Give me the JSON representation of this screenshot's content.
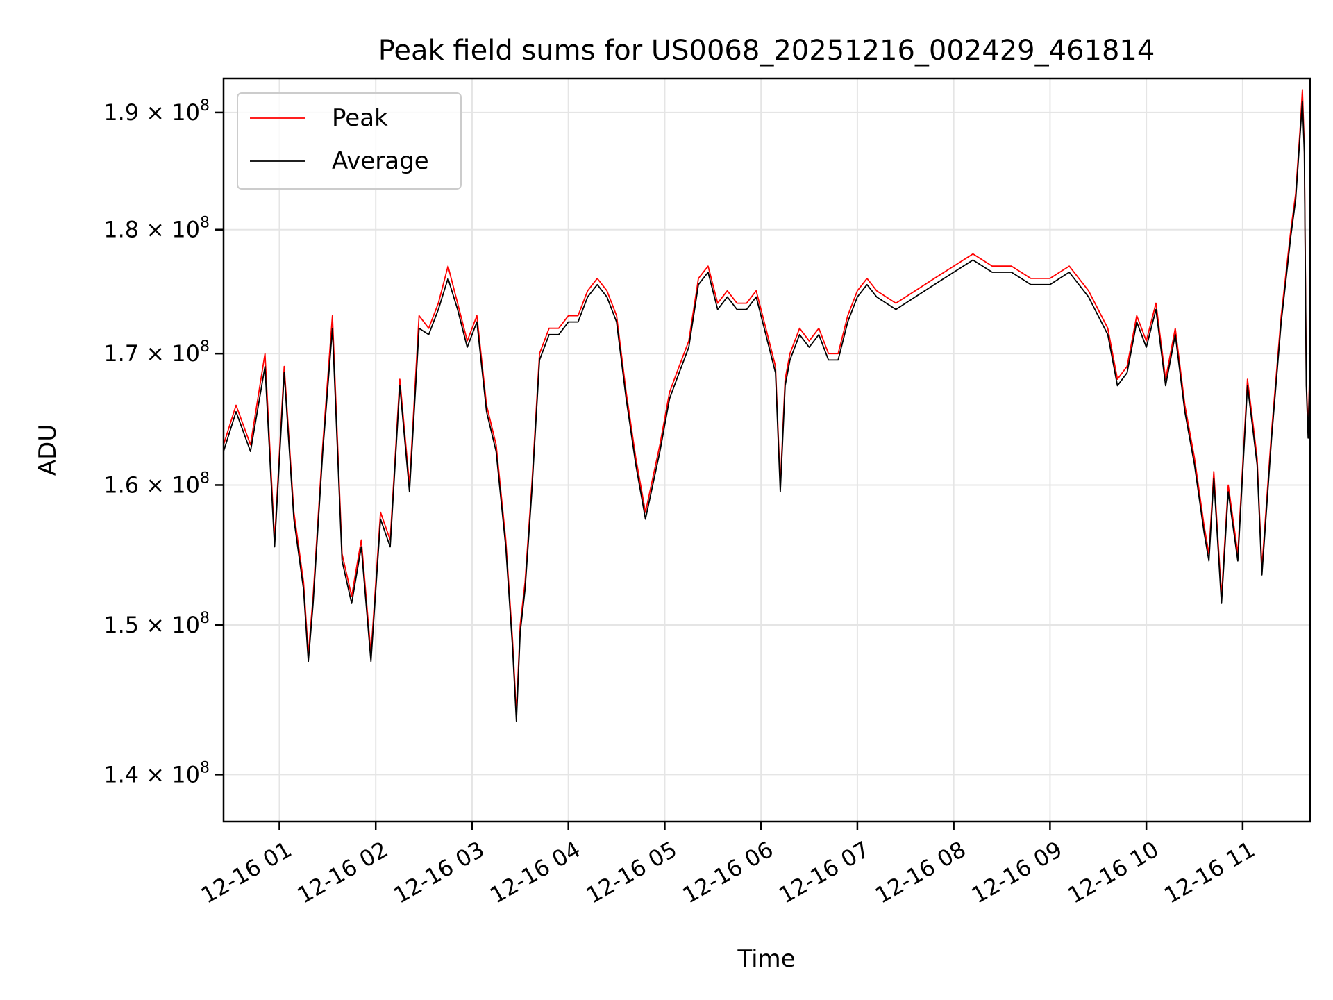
{
  "chart_data": {
    "type": "line",
    "title": "Peak field sums for US0068_20251216_002429_461814",
    "xlabel": "Time",
    "ylabel": "ADU",
    "x_unit": "hours",
    "xlim": [
      0.42,
      11.7
    ],
    "ylim": [
      137000000,
      193000000
    ],
    "y_scale": "log",
    "grid": true,
    "legend_position": "upper-left",
    "x_ticks": [
      {
        "value": 1,
        "label": "12-16 01"
      },
      {
        "value": 2,
        "label": "12-16 02"
      },
      {
        "value": 3,
        "label": "12-16 03"
      },
      {
        "value": 4,
        "label": "12-16 04"
      },
      {
        "value": 5,
        "label": "12-16 05"
      },
      {
        "value": 6,
        "label": "12-16 06"
      },
      {
        "value": 7,
        "label": "12-16 07"
      },
      {
        "value": 8,
        "label": "12-16 08"
      },
      {
        "value": 9,
        "label": "12-16 09"
      },
      {
        "value": 10,
        "label": "12-16 10"
      },
      {
        "value": 11,
        "label": "12-16 11"
      }
    ],
    "y_ticks": [
      {
        "value": 140000000,
        "mantissa": "1.4"
      },
      {
        "value": 150000000,
        "mantissa": "1.5"
      },
      {
        "value": 160000000,
        "mantissa": "1.6"
      },
      {
        "value": 170000000,
        "mantissa": "1.7"
      },
      {
        "value": 180000000,
        "mantissa": "1.8"
      },
      {
        "value": 190000000,
        "mantissa": "1.9"
      }
    ],
    "y_tick_exponent_base": "10",
    "y_tick_exponent": "8",
    "y_tick_times": "×",
    "series": [
      {
        "name": "Peak",
        "color": "#ff0000",
        "x": [
          0.42,
          0.55,
          0.7,
          0.85,
          0.95,
          1.05,
          1.15,
          1.25,
          1.3,
          1.35,
          1.45,
          1.55,
          1.65,
          1.75,
          1.85,
          1.95,
          2.05,
          2.15,
          2.25,
          2.35,
          2.45,
          2.55,
          2.65,
          2.75,
          2.85,
          2.95,
          3.05,
          3.15,
          3.25,
          3.35,
          3.42,
          3.46,
          3.5,
          3.55,
          3.62,
          3.7,
          3.8,
          3.9,
          4.0,
          4.1,
          4.2,
          4.3,
          4.4,
          4.5,
          4.6,
          4.7,
          4.8,
          4.95,
          5.05,
          5.15,
          5.25,
          5.35,
          5.45,
          5.55,
          5.65,
          5.75,
          5.85,
          5.95,
          6.05,
          6.15,
          6.2,
          6.25,
          6.3,
          6.4,
          6.5,
          6.6,
          6.7,
          6.8,
          6.9,
          7.0,
          7.1,
          7.2,
          7.4,
          7.6,
          7.8,
          8.0,
          8.2,
          8.4,
          8.6,
          8.8,
          9.0,
          9.2,
          9.4,
          9.6,
          9.7,
          9.8,
          9.9,
          10.0,
          10.1,
          10.2,
          10.3,
          10.4,
          10.5,
          10.6,
          10.65,
          10.7,
          10.78,
          10.85,
          10.95,
          11.05,
          11.1,
          11.15,
          11.2,
          11.3,
          11.4,
          11.5,
          11.55,
          11.6,
          11.62,
          11.64,
          11.66,
          11.68,
          11.7
        ],
        "y": [
          163000000,
          166000000,
          163000000,
          170000000,
          156000000,
          169000000,
          158000000,
          153000000,
          148000000,
          152000000,
          163000000,
          173000000,
          155000000,
          152000000,
          156000000,
          148000000,
          158000000,
          156000000,
          168000000,
          160000000,
          173000000,
          172000000,
          174000000,
          177000000,
          174000000,
          171000000,
          173000000,
          166000000,
          163000000,
          156000000,
          149000000,
          144000000,
          150000000,
          153000000,
          160000000,
          170000000,
          172000000,
          172000000,
          173000000,
          173000000,
          175000000,
          176000000,
          175000000,
          173000000,
          167000000,
          162000000,
          158000000,
          163000000,
          167000000,
          169000000,
          171000000,
          176000000,
          177000000,
          174000000,
          175000000,
          174000000,
          174000000,
          175000000,
          172000000,
          169000000,
          160000000,
          168000000,
          170000000,
          172000000,
          171000000,
          172000000,
          170000000,
          170000000,
          173000000,
          175000000,
          176000000,
          175000000,
          174000000,
          175000000,
          176000000,
          177000000,
          178000000,
          177000000,
          177000000,
          176000000,
          176000000,
          177000000,
          175000000,
          172000000,
          168000000,
          169000000,
          173000000,
          171000000,
          174000000,
          168000000,
          172000000,
          166000000,
          162000000,
          157000000,
          155000000,
          161000000,
          152000000,
          160000000,
          155000000,
          168000000,
          165000000,
          162000000,
          154000000,
          164000000,
          173000000,
          180000000,
          183000000,
          189000000,
          192000000,
          187000000,
          168000000,
          164000000,
          170000000
        ]
      },
      {
        "name": "Average",
        "color": "#000000",
        "x": [
          0.42,
          0.55,
          0.7,
          0.85,
          0.95,
          1.05,
          1.15,
          1.25,
          1.3,
          1.35,
          1.45,
          1.55,
          1.65,
          1.75,
          1.85,
          1.95,
          2.05,
          2.15,
          2.25,
          2.35,
          2.45,
          2.55,
          2.65,
          2.75,
          2.85,
          2.95,
          3.05,
          3.15,
          3.25,
          3.35,
          3.42,
          3.46,
          3.5,
          3.55,
          3.62,
          3.7,
          3.8,
          3.9,
          4.0,
          4.1,
          4.2,
          4.3,
          4.4,
          4.5,
          4.6,
          4.7,
          4.8,
          4.95,
          5.05,
          5.15,
          5.25,
          5.35,
          5.45,
          5.55,
          5.65,
          5.75,
          5.85,
          5.95,
          6.05,
          6.15,
          6.2,
          6.25,
          6.3,
          6.4,
          6.5,
          6.6,
          6.7,
          6.8,
          6.9,
          7.0,
          7.1,
          7.2,
          7.4,
          7.6,
          7.8,
          8.0,
          8.2,
          8.4,
          8.6,
          8.8,
          9.0,
          9.2,
          9.4,
          9.6,
          9.7,
          9.8,
          9.9,
          10.0,
          10.1,
          10.2,
          10.3,
          10.4,
          10.5,
          10.6,
          10.65,
          10.7,
          10.78,
          10.85,
          10.95,
          11.05,
          11.1,
          11.15,
          11.2,
          11.3,
          11.4,
          11.5,
          11.55,
          11.6,
          11.62,
          11.64,
          11.66,
          11.68,
          11.7
        ],
        "y": [
          162500000,
          165500000,
          162500000,
          169000000,
          155500000,
          168500000,
          157500000,
          152500000,
          147500000,
          151500000,
          162500000,
          172000000,
          154500000,
          151500000,
          155500000,
          147500000,
          157500000,
          155500000,
          167500000,
          159500000,
          172000000,
          171500000,
          173500000,
          176000000,
          173500000,
          170500000,
          172500000,
          165500000,
          162500000,
          155500000,
          148500000,
          143500000,
          149500000,
          152500000,
          159500000,
          169500000,
          171500000,
          171500000,
          172500000,
          172500000,
          174500000,
          175500000,
          174500000,
          172500000,
          166500000,
          161500000,
          157500000,
          162500000,
          166500000,
          168500000,
          170500000,
          175500000,
          176500000,
          173500000,
          174500000,
          173500000,
          173500000,
          174500000,
          171500000,
          168500000,
          159500000,
          167500000,
          169500000,
          171500000,
          170500000,
          171500000,
          169500000,
          169500000,
          172500000,
          174500000,
          175500000,
          174500000,
          173500000,
          174500000,
          175500000,
          176500000,
          177500000,
          176500000,
          176500000,
          175500000,
          175500000,
          176500000,
          174500000,
          171500000,
          167500000,
          168500000,
          172500000,
          170500000,
          173500000,
          167500000,
          171500000,
          165500000,
          161500000,
          156500000,
          154500000,
          160500000,
          151500000,
          159500000,
          154500000,
          167500000,
          164500000,
          161500000,
          153500000,
          163500000,
          172500000,
          179500000,
          182500000,
          188500000,
          191000000,
          186500000,
          167500000,
          163500000,
          169500000
        ]
      }
    ]
  }
}
